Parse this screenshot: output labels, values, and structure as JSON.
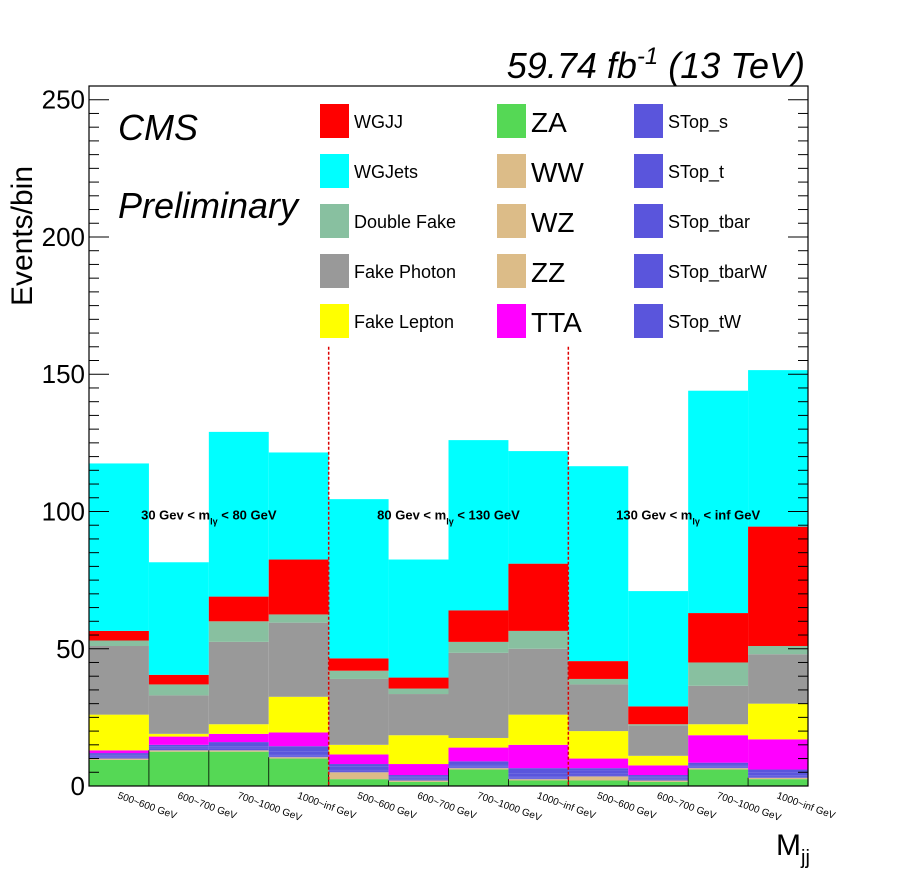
{
  "header": {
    "lumi": "59.74 fb",
    "lumi_exp": "-1",
    "energy": " (13 TeV)",
    "experiment": "CMS",
    "status": "Preliminary"
  },
  "chart_data": {
    "type": "bar",
    "stacked": true,
    "xlabel": "M",
    "xlabel_sub": "jj",
    "ylabel": "Events/bin",
    "ylim": [
      0,
      255
    ],
    "yticks": [
      0,
      50,
      100,
      150,
      200,
      250
    ],
    "grid": false,
    "categories": [
      "500~600 GeV",
      "600~700 GeV",
      "700~1000 GeV",
      "1000~inf GeV",
      "500~600 GeV",
      "600~700 GeV",
      "700~1000 GeV",
      "1000~inf GeV",
      "500~600 GeV",
      "600~700 GeV",
      "700~1000 GeV",
      "1000~inf GeV"
    ],
    "regions": [
      {
        "pre": "30 Gev < m",
        "sub": "lγ",
        "post": " < 80 GeV"
      },
      {
        "pre": "80 Gev < m",
        "sub": "lγ",
        "post": " < 130 GeV"
      },
      {
        "pre": "130 Gev < m",
        "sub": "lγ",
        "post": " < inf GeV"
      }
    ],
    "stack_order_note": "bottom to top",
    "series": [
      {
        "name": "ZA",
        "color": "#55d855",
        "values": [
          9.5,
          12.5,
          12.5,
          10,
          2.5,
          1.5,
          6,
          2,
          2,
          1.5,
          6,
          2.5
        ]
      },
      {
        "name": "WW",
        "color": "#dcbc88",
        "values": [
          0.5,
          0.5,
          0.5,
          0.5,
          2.5,
          0.5,
          0.5,
          0.5,
          1.5,
          0.5,
          0.5,
          0.5
        ]
      },
      {
        "name": "WZ",
        "color": "#dcbc88",
        "values": [
          0,
          0,
          0,
          0,
          0,
          0,
          0,
          0,
          0,
          0,
          0,
          0
        ]
      },
      {
        "name": "ZZ",
        "color": "#dcbc88",
        "values": [
          0,
          0,
          0,
          0,
          0,
          0,
          0,
          0,
          0,
          0,
          0,
          0
        ]
      },
      {
        "name": "STop_s",
        "color": "#5a55dc",
        "values": [
          0.3,
          0.3,
          0.3,
          0.3,
          0.3,
          0.3,
          0.3,
          0.3,
          0.3,
          0.3,
          0.3,
          0.3
        ]
      },
      {
        "name": "STop_t",
        "color": "#5a55dc",
        "values": [
          0.4,
          0.4,
          0.4,
          0.4,
          0.4,
          0.4,
          0.4,
          0.4,
          0.4,
          0.4,
          0.4,
          0.4
        ]
      },
      {
        "name": "STop_tbar",
        "color": "#5a55dc",
        "values": [
          0.3,
          0.3,
          0.3,
          0.3,
          0.3,
          0.3,
          0.3,
          0.3,
          0.3,
          0.3,
          0.3,
          0.3
        ]
      },
      {
        "name": "STop_tbarW",
        "color": "#5a55dc",
        "values": [
          0.5,
          0.5,
          0.5,
          1,
          1,
          0.5,
          0.5,
          1,
          1,
          0.5,
          0.5,
          1
        ]
      },
      {
        "name": "STop_tW",
        "color": "#5a55dc",
        "values": [
          0.5,
          0.5,
          1.5,
          2,
          1,
          0.5,
          1,
          2,
          1,
          0.5,
          0.5,
          1
        ]
      },
      {
        "name": "TTA",
        "color": "#ff00ff",
        "values": [
          1,
          3,
          3,
          5,
          3.5,
          4,
          5,
          8.5,
          3.5,
          3.5,
          10,
          11
        ]
      },
      {
        "name": "Fake Lepton",
        "color": "#ffff00",
        "values": [
          13,
          1,
          3.5,
          13,
          3.5,
          10.5,
          3.5,
          11,
          10,
          3.5,
          4,
          13
        ]
      },
      {
        "name": "Fake Photon",
        "color": "#999999",
        "values": [
          25,
          14,
          30,
          27,
          24,
          15,
          31,
          24,
          17,
          11,
          14,
          18
        ]
      },
      {
        "name": "Double Fake",
        "color": "#88c0a0",
        "values": [
          2,
          4,
          7.5,
          3,
          3,
          2,
          4,
          6.5,
          2,
          0.5,
          8.5,
          3
        ]
      },
      {
        "name": "WGJJ",
        "color": "#ff0000",
        "values": [
          3.5,
          3.5,
          9,
          20,
          4.5,
          4,
          11.5,
          24.5,
          6.5,
          6.5,
          18,
          43.5
        ]
      },
      {
        "name": "WGJets",
        "color": "#00ffff",
        "values": [
          61,
          41,
          60,
          39,
          58,
          43,
          62,
          41,
          71,
          42,
          81,
          57
        ]
      }
    ],
    "legend": [
      {
        "label": "WGJJ",
        "color": "#ff0000",
        "size": "small"
      },
      {
        "label": "WGJets",
        "color": "#00ffff",
        "size": "small"
      },
      {
        "label": "Double Fake",
        "color": "#88c0a0",
        "size": "small"
      },
      {
        "label": "Fake Photon",
        "color": "#999999",
        "size": "small"
      },
      {
        "label": "Fake Lepton",
        "color": "#ffff00",
        "size": "small"
      },
      {
        "label": "ZA",
        "color": "#55d855",
        "size": "big"
      },
      {
        "label": "WW",
        "color": "#dcbc88",
        "size": "big"
      },
      {
        "label": "WZ",
        "color": "#dcbc88",
        "size": "big"
      },
      {
        "label": "ZZ",
        "color": "#dcbc88",
        "size": "big"
      },
      {
        "label": "TTA",
        "color": "#ff00ff",
        "size": "big"
      },
      {
        "label": "STop_s",
        "color": "#5a55dc",
        "size": "small"
      },
      {
        "label": "STop_t",
        "color": "#5a55dc",
        "size": "small"
      },
      {
        "label": "STop_tbar",
        "color": "#5a55dc",
        "size": "small"
      },
      {
        "label": "STop_tbarW",
        "color": "#5a55dc",
        "size": "small"
      },
      {
        "label": "STop_tW",
        "color": "#5a55dc",
        "size": "small"
      }
    ],
    "legend_placement": "top, inside plot",
    "divider_color": "#dd0000"
  }
}
